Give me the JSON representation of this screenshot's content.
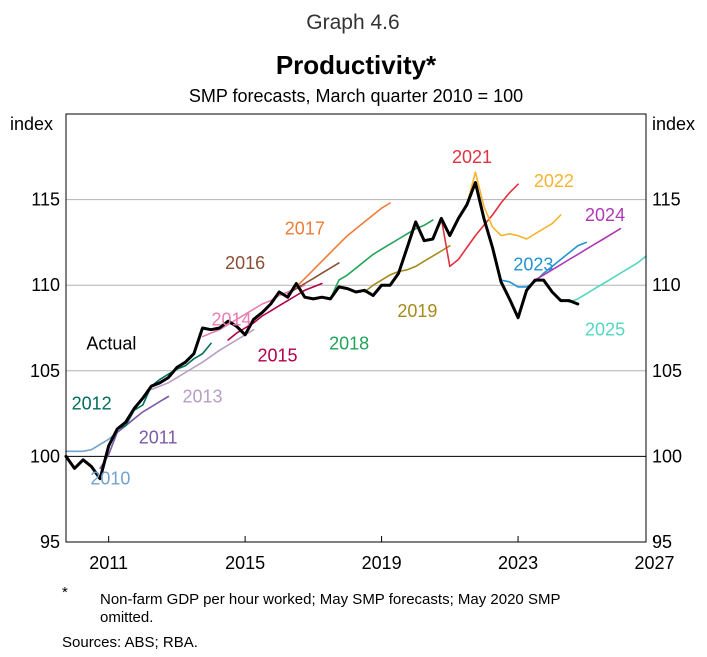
{
  "header": {
    "graph_number": "Graph 4.6",
    "title": "Productivity*",
    "subtitle": "SMP forecasts, March quarter 2010 = 100"
  },
  "chart_data": {
    "type": "line",
    "y_unit_left": "index",
    "y_unit_right": "index",
    "ylim": [
      95,
      120
    ],
    "xlim": [
      2010.0,
      2027.0
    ],
    "y_ticks": [
      95,
      100,
      105,
      110,
      115
    ],
    "x_ticks": [
      {
        "year": 2011.25,
        "label": "2011"
      },
      {
        "year": 2015.25,
        "label": "2015"
      },
      {
        "year": 2019.25,
        "label": "2019"
      },
      {
        "year": 2023.25,
        "label": "2023"
      },
      {
        "year": 2027.25,
        "label": "2027"
      }
    ],
    "grid": "horizontal",
    "series": [
      {
        "name": "Actual",
        "color": "#000000",
        "width": 3,
        "label_at": [
          2011.33,
          106.6
        ],
        "points": [
          [
            2010.0,
            100.0
          ],
          [
            2010.25,
            99.3
          ],
          [
            2010.5,
            99.8
          ],
          [
            2010.75,
            99.4
          ],
          [
            2011.0,
            98.7
          ],
          [
            2011.25,
            100.6
          ],
          [
            2011.5,
            101.6
          ],
          [
            2011.75,
            102.0
          ],
          [
            2012.0,
            102.8
          ],
          [
            2012.25,
            103.4
          ],
          [
            2012.5,
            104.1
          ],
          [
            2012.75,
            104.3
          ],
          [
            2013.0,
            104.6
          ],
          [
            2013.25,
            105.2
          ],
          [
            2013.5,
            105.5
          ],
          [
            2013.75,
            106.0
          ],
          [
            2014.0,
            107.5
          ],
          [
            2014.25,
            107.4
          ],
          [
            2014.5,
            107.5
          ],
          [
            2014.75,
            107.9
          ],
          [
            2015.0,
            107.6
          ],
          [
            2015.25,
            107.1
          ],
          [
            2015.5,
            108.0
          ],
          [
            2015.75,
            108.4
          ],
          [
            2016.0,
            108.9
          ],
          [
            2016.25,
            109.6
          ],
          [
            2016.5,
            109.3
          ],
          [
            2016.75,
            110.1
          ],
          [
            2017.0,
            109.3
          ],
          [
            2017.25,
            109.2
          ],
          [
            2017.5,
            109.3
          ],
          [
            2017.75,
            109.2
          ],
          [
            2018.0,
            109.9
          ],
          [
            2018.25,
            109.8
          ],
          [
            2018.5,
            109.6
          ],
          [
            2018.75,
            109.7
          ],
          [
            2019.0,
            109.4
          ],
          [
            2019.25,
            110.0
          ],
          [
            2019.5,
            110.0
          ],
          [
            2019.75,
            110.7
          ],
          [
            2020.0,
            112.2
          ],
          [
            2020.25,
            113.7
          ],
          [
            2020.5,
            112.6
          ],
          [
            2020.75,
            112.7
          ],
          [
            2021.0,
            113.9
          ],
          [
            2021.25,
            112.9
          ],
          [
            2021.5,
            113.9
          ],
          [
            2021.75,
            114.7
          ],
          [
            2022.0,
            116.0
          ],
          [
            2022.25,
            113.9
          ],
          [
            2022.5,
            112.2
          ],
          [
            2022.75,
            110.2
          ],
          [
            2023.0,
            109.2
          ],
          [
            2023.25,
            108.1
          ],
          [
            2023.5,
            109.7
          ],
          [
            2023.75,
            110.3
          ],
          [
            2024.0,
            110.3
          ],
          [
            2024.25,
            109.6
          ],
          [
            2024.5,
            109.1
          ],
          [
            2024.75,
            109.1
          ],
          [
            2025.0,
            108.9
          ]
        ]
      },
      {
        "name": "2010",
        "color": "#72a3cc",
        "width": 1.6,
        "label_at": [
          2011.3,
          98.7
        ],
        "points": [
          [
            2010.0,
            100.3
          ],
          [
            2010.5,
            100.3
          ],
          [
            2010.75,
            100.4
          ],
          [
            2011.0,
            100.7
          ],
          [
            2011.25,
            101.0
          ],
          [
            2011.5,
            101.4
          ],
          [
            2011.75,
            101.8
          ],
          [
            2012.0,
            102.2
          ]
        ]
      },
      {
        "name": "2011",
        "color": "#7b5aa6",
        "width": 1.6,
        "label_at": [
          2012.7,
          101.1
        ],
        "points": [
          [
            2011.0,
            99.3
          ],
          [
            2011.25,
            100.1
          ],
          [
            2011.5,
            101.4
          ],
          [
            2011.75,
            101.8
          ],
          [
            2012.0,
            102.2
          ],
          [
            2012.25,
            102.6
          ],
          [
            2012.5,
            102.9
          ],
          [
            2012.75,
            103.2
          ],
          [
            2013.0,
            103.5
          ]
        ]
      },
      {
        "name": "2012",
        "color": "#006e5c",
        "width": 1.6,
        "label_at": [
          2010.75,
          103.1
        ],
        "points": [
          [
            2011.5,
            101.6
          ],
          [
            2011.75,
            101.8
          ],
          [
            2012.0,
            102.7
          ],
          [
            2012.25,
            103.0
          ],
          [
            2012.5,
            104.1
          ],
          [
            2012.75,
            104.5
          ],
          [
            2013.0,
            104.8
          ],
          [
            2013.25,
            105.1
          ],
          [
            2013.5,
            105.3
          ],
          [
            2013.75,
            105.7
          ],
          [
            2014.0,
            106.0
          ],
          [
            2014.25,
            106.6
          ]
        ]
      },
      {
        "name": "2013",
        "color": "#b89ec7",
        "width": 1.6,
        "label_at": [
          2014.0,
          103.5
        ],
        "points": [
          [
            2012.5,
            103.9
          ],
          [
            2013.0,
            104.3
          ],
          [
            2013.5,
            104.9
          ],
          [
            2014.0,
            105.5
          ],
          [
            2014.5,
            106.2
          ],
          [
            2015.0,
            106.8
          ],
          [
            2015.5,
            107.4
          ]
        ]
      },
      {
        "name": "2014",
        "color": "#e97eb3",
        "width": 1.6,
        "label_at": [
          2014.85,
          108.0
        ],
        "points": [
          [
            2014.0,
            107.0
          ],
          [
            2014.25,
            107.2
          ],
          [
            2014.5,
            107.4
          ],
          [
            2014.75,
            107.7
          ],
          [
            2015.0,
            108.0
          ],
          [
            2015.25,
            108.3
          ],
          [
            2015.5,
            108.6
          ],
          [
            2015.75,
            108.9
          ],
          [
            2016.0,
            109.1
          ],
          [
            2016.25,
            109.4
          ],
          [
            2016.5,
            109.6
          ],
          [
            2016.75,
            109.8
          ],
          [
            2017.0,
            110.0
          ]
        ]
      },
      {
        "name": "2015",
        "color": "#b4004b",
        "width": 1.6,
        "label_at": [
          2016.2,
          105.9
        ],
        "points": [
          [
            2014.75,
            106.8
          ],
          [
            2015.0,
            107.2
          ],
          [
            2015.25,
            107.5
          ],
          [
            2015.5,
            107.8
          ],
          [
            2015.75,
            108.2
          ],
          [
            2016.0,
            108.5
          ],
          [
            2016.25,
            108.8
          ],
          [
            2016.5,
            109.1
          ],
          [
            2016.75,
            109.4
          ],
          [
            2017.0,
            109.7
          ],
          [
            2017.25,
            109.9
          ],
          [
            2017.5,
            110.1
          ]
        ]
      },
      {
        "name": "2016",
        "color": "#8a4e36",
        "width": 1.6,
        "label_at": [
          2015.25,
          111.3
        ],
        "points": [
          [
            2016.5,
            109.5
          ],
          [
            2016.75,
            109.8
          ],
          [
            2017.0,
            110.1
          ],
          [
            2017.25,
            110.4
          ],
          [
            2017.5,
            110.7
          ],
          [
            2017.75,
            111.0
          ],
          [
            2018.0,
            111.3
          ]
        ]
      },
      {
        "name": "2017",
        "color": "#f07c3a",
        "width": 1.6,
        "label_at": [
          2017.0,
          113.3
        ],
        "points": [
          [
            2016.75,
            109.9
          ],
          [
            2017.0,
            110.4
          ],
          [
            2017.25,
            110.9
          ],
          [
            2017.5,
            111.4
          ],
          [
            2017.75,
            111.9
          ],
          [
            2018.0,
            112.4
          ],
          [
            2018.25,
            112.9
          ],
          [
            2018.5,
            113.3
          ],
          [
            2018.75,
            113.7
          ],
          [
            2019.0,
            114.1
          ],
          [
            2019.25,
            114.5
          ],
          [
            2019.5,
            114.8
          ]
        ]
      },
      {
        "name": "2018",
        "color": "#21a35a",
        "width": 1.6,
        "label_at": [
          2018.3,
          106.6
        ],
        "points": [
          [
            2017.75,
            109.2
          ],
          [
            2018.0,
            110.3
          ],
          [
            2018.25,
            110.6
          ],
          [
            2018.5,
            111.0
          ],
          [
            2018.75,
            111.4
          ],
          [
            2019.0,
            111.8
          ],
          [
            2019.25,
            112.1
          ],
          [
            2019.5,
            112.4
          ],
          [
            2019.75,
            112.7
          ],
          [
            2020.0,
            113.0
          ],
          [
            2020.25,
            113.3
          ],
          [
            2020.5,
            113.5
          ],
          [
            2020.75,
            113.8
          ]
        ]
      },
      {
        "name": "2019",
        "color": "#a58a1d",
        "width": 1.6,
        "label_at": [
          2020.3,
          108.5
        ],
        "points": [
          [
            2018.75,
            109.6
          ],
          [
            2019.0,
            110.0
          ],
          [
            2019.25,
            110.3
          ],
          [
            2019.5,
            110.6
          ],
          [
            2019.75,
            110.8
          ],
          [
            2020.0,
            110.9
          ],
          [
            2020.25,
            111.1
          ],
          [
            2020.5,
            111.4
          ],
          [
            2020.75,
            111.7
          ],
          [
            2021.0,
            112.0
          ],
          [
            2021.25,
            112.3
          ]
        ]
      },
      {
        "name": "2021",
        "color": "#e23141",
        "width": 1.6,
        "label_at": [
          2021.9,
          117.5
        ],
        "points": [
          [
            2021.0,
            113.9
          ],
          [
            2021.25,
            111.1
          ],
          [
            2021.5,
            111.5
          ],
          [
            2021.75,
            112.2
          ],
          [
            2022.0,
            112.9
          ],
          [
            2022.25,
            113.5
          ],
          [
            2022.5,
            114.1
          ],
          [
            2022.75,
            114.8
          ],
          [
            2023.0,
            115.4
          ],
          [
            2023.25,
            115.9
          ]
        ]
      },
      {
        "name": "2022",
        "color": "#f6b42b",
        "width": 1.6,
        "label_at": [
          2024.3,
          116.1
        ],
        "points": [
          [
            2021.75,
            114.7
          ],
          [
            2022.0,
            116.6
          ],
          [
            2022.25,
            114.6
          ],
          [
            2022.5,
            113.4
          ],
          [
            2022.75,
            112.9
          ],
          [
            2023.0,
            113.0
          ],
          [
            2023.25,
            112.9
          ],
          [
            2023.5,
            112.7
          ],
          [
            2023.75,
            113.0
          ],
          [
            2024.0,
            113.3
          ],
          [
            2024.25,
            113.6
          ],
          [
            2024.5,
            114.1
          ]
        ]
      },
      {
        "name": "2023",
        "color": "#2094d3",
        "width": 1.6,
        "label_at": [
          2023.7,
          111.2
        ],
        "points": [
          [
            2022.75,
            110.3
          ],
          [
            2023.0,
            110.2
          ],
          [
            2023.25,
            109.9
          ],
          [
            2023.5,
            109.9
          ],
          [
            2023.75,
            110.2
          ],
          [
            2024.0,
            110.7
          ],
          [
            2024.25,
            111.1
          ],
          [
            2024.5,
            111.5
          ],
          [
            2024.75,
            111.9
          ],
          [
            2025.0,
            112.3
          ],
          [
            2025.25,
            112.5
          ]
        ]
      },
      {
        "name": "2024",
        "color": "#ad39b5",
        "width": 1.6,
        "label_at": [
          2025.8,
          114.1
        ],
        "points": [
          [
            2023.75,
            110.3
          ],
          [
            2024.0,
            110.6
          ],
          [
            2024.25,
            110.9
          ],
          [
            2024.5,
            111.2
          ],
          [
            2024.75,
            111.5
          ],
          [
            2025.0,
            111.8
          ],
          [
            2025.25,
            112.1
          ],
          [
            2025.5,
            112.4
          ],
          [
            2025.75,
            112.7
          ],
          [
            2026.0,
            113.0
          ],
          [
            2026.25,
            113.3
          ]
        ]
      },
      {
        "name": "2025",
        "color": "#55d6c2",
        "width": 1.6,
        "label_at": [
          2025.8,
          107.4
        ],
        "points": [
          [
            2024.75,
            109.0
          ],
          [
            2025.0,
            109.2
          ],
          [
            2025.25,
            109.5
          ],
          [
            2025.5,
            109.8
          ],
          [
            2025.75,
            110.1
          ],
          [
            2026.0,
            110.4
          ],
          [
            2026.25,
            110.7
          ],
          [
            2026.5,
            111.0
          ],
          [
            2026.75,
            111.3
          ],
          [
            2027.0,
            111.7
          ]
        ]
      }
    ]
  },
  "footnotes": {
    "asterisk": "*",
    "note": "Non-farm GDP per hour worked; May SMP forecasts; May 2020 SMP omitted.",
    "sources": "Sources: ABS; RBA."
  }
}
